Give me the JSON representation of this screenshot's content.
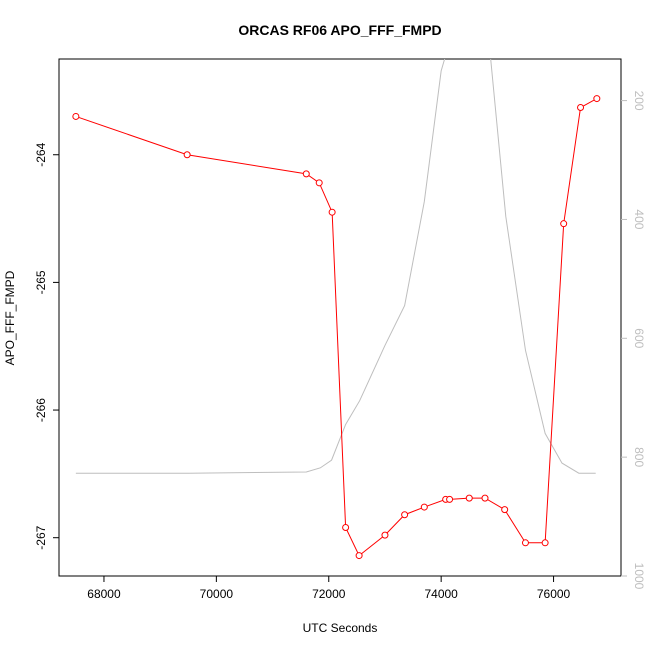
{
  "chart_data": {
    "type": "line",
    "title": "ORCAS RF06 APO_FFF_FMPD",
    "xlabel": "UTC Seconds",
    "ylabel": "APO_FFF_FMPD",
    "xlim": [
      67200,
      77200
    ],
    "ylim": [
      -267.3,
      -263.25
    ],
    "y2lim": [
      1000,
      130
    ],
    "y2_reversed": true,
    "x_ticks": [
      68000,
      70000,
      72000,
      74000,
      76000
    ],
    "y_ticks": [
      -264,
      -265,
      -266,
      -267
    ],
    "y2_ticks": [
      200,
      400,
      600,
      800,
      1000
    ],
    "x_tick_labels": [
      "68000",
      "70000",
      "72000",
      "74000",
      "76000"
    ],
    "y_tick_labels": [
      "-264",
      "-265",
      "-266",
      "-267"
    ],
    "y2_tick_labels": [
      "200",
      "400",
      "600",
      "800",
      "1000"
    ],
    "grid": false,
    "series": [
      {
        "color": "#ff0000",
        "marker": "open-circle",
        "axis": "left",
        "x": [
          67500,
          69480,
          71600,
          71830,
          72060,
          72300,
          72540,
          73000,
          73350,
          73700,
          74080,
          74150,
          74500,
          74780,
          75130,
          75500,
          75850,
          76180,
          76480,
          76770
        ],
        "y": [
          -263.7,
          -264.0,
          -264.15,
          -264.22,
          -264.45,
          -266.92,
          -267.14,
          -266.98,
          -266.82,
          -266.76,
          -266.7,
          -266.7,
          -266.69,
          -266.69,
          -266.78,
          -267.04,
          -267.04,
          -264.54,
          -263.63,
          -263.56
        ]
      },
      {
        "color": "#bebebe",
        "marker": "none",
        "axis": "right",
        "x": [
          67500,
          69500,
          71600,
          71850,
          72050,
          72300,
          72550,
          73000,
          73350,
          73700,
          74000,
          74400,
          74800,
          75150,
          75500,
          75850,
          76150,
          76450,
          76750
        ],
        "y": [
          827,
          827,
          825,
          818,
          805,
          745,
          705,
          612,
          545,
          370,
          150,
          20,
          50,
          395,
          620,
          760,
          810,
          827,
          827
        ]
      }
    ]
  }
}
